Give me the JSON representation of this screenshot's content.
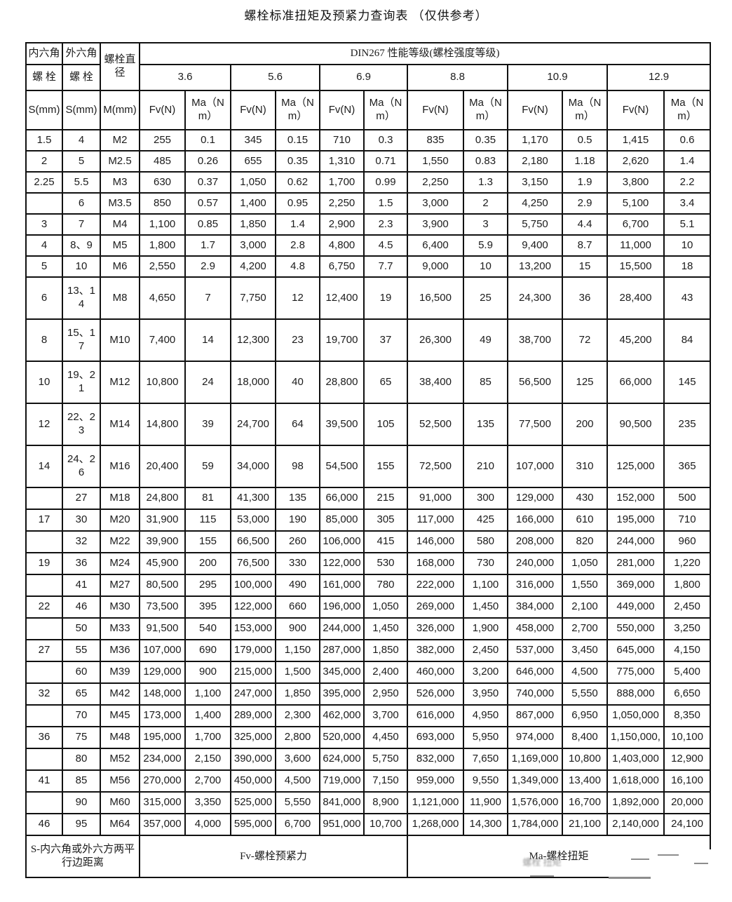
{
  "title": "螺栓标准扭矩及预紧力查询表 （仅供参考）",
  "table": {
    "corner": {
      "inner_hex": "内六角",
      "outer_hex": "外六角",
      "bolt_dia": "螺栓直径",
      "screw": "螺 栓",
      "s_unit": "S(mm)",
      "m_unit": "M(mm)"
    },
    "din_header": "DIN267 性能等级(螺栓强度等级)",
    "grades": [
      "3.6",
      "5.6",
      "6.9",
      "8.8",
      "10.9",
      "12.9"
    ],
    "fv_label": "Fv(N)",
    "ma_label": "Ma（N m）",
    "rows": [
      [
        "1.5",
        "4",
        "M2",
        "255",
        "0.1",
        "345",
        "0.15",
        "710",
        "0.3",
        "835",
        "0.35",
        "1,170",
        "0.5",
        "1,415",
        "0.6"
      ],
      [
        "2",
        "5",
        "M2.5",
        "485",
        "0.26",
        "655",
        "0.35",
        "1,310",
        "0.71",
        "1,550",
        "0.83",
        "2,180",
        "1.18",
        "2,620",
        "1.4"
      ],
      [
        "2.25",
        "5.5",
        "M3",
        "630",
        "0.37",
        "1,050",
        "0.62",
        "1,700",
        "0.99",
        "2,250",
        "1.3",
        "3,150",
        "1.9",
        "3,800",
        "2.2"
      ],
      [
        "",
        "6",
        "M3.5",
        "850",
        "0.57",
        "1,400",
        "0.95",
        "2,250",
        "1.5",
        "3,000",
        "2",
        "4,250",
        "2.9",
        "5,100",
        "3.4"
      ],
      [
        "3",
        "7",
        "M4",
        "1,100",
        "0.85",
        "1,850",
        "1.4",
        "2,900",
        "2.3",
        "3,900",
        "3",
        "5,750",
        "4.4",
        "6,700",
        "5.1"
      ],
      [
        "4",
        "8、9",
        "M5",
        "1,800",
        "1.7",
        "3,000",
        "2.8",
        "4,800",
        "4.5",
        "6,400",
        "5.9",
        "9,400",
        "8.7",
        "11,000",
        "10"
      ],
      [
        "5",
        "10",
        "M6",
        "2,550",
        "2.9",
        "4,200",
        "4.8",
        "6,750",
        "7.7",
        "9,000",
        "10",
        "13,200",
        "15",
        "15,500",
        "18"
      ],
      [
        "6",
        "13、14",
        "M8",
        "4,650",
        "7",
        "7,750",
        "12",
        "12,400",
        "19",
        "16,500",
        "25",
        "24,300",
        "36",
        "28,400",
        "43"
      ],
      [
        "8",
        "15、17",
        "M10",
        "7,400",
        "14",
        "12,300",
        "23",
        "19,700",
        "37",
        "26,300",
        "49",
        "38,700",
        "72",
        "45,200",
        "84"
      ],
      [
        "10",
        "19、21",
        "M12",
        "10,800",
        "24",
        "18,000",
        "40",
        "28,800",
        "65",
        "38,400",
        "85",
        "56,500",
        "125",
        "66,000",
        "145"
      ],
      [
        "12",
        "22、23",
        "M14",
        "14,800",
        "39",
        "24,700",
        "64",
        "39,500",
        "105",
        "52,500",
        "135",
        "77,500",
        "200",
        "90,500",
        "235"
      ],
      [
        "14",
        "24、26",
        "M16",
        "20,400",
        "59",
        "34,000",
        "98",
        "54,500",
        "155",
        "72,500",
        "210",
        "107,000",
        "310",
        "125,000",
        "365"
      ],
      [
        "",
        "27",
        "M18",
        "24,800",
        "81",
        "41,300",
        "135",
        "66,000",
        "215",
        "91,000",
        "300",
        "129,000",
        "430",
        "152,000",
        "500"
      ],
      [
        "17",
        "30",
        "M20",
        "31,900",
        "115",
        "53,000",
        "190",
        "85,000",
        "305",
        "117,000",
        "425",
        "166,000",
        "610",
        "195,000",
        "710"
      ],
      [
        "",
        "32",
        "M22",
        "39,900",
        "155",
        "66,500",
        "260",
        "106,000",
        "415",
        "146,000",
        "580",
        "208,000",
        "820",
        "244,000",
        "960"
      ],
      [
        "19",
        "36",
        "M24",
        "45,900",
        "200",
        "76,500",
        "330",
        "122,000",
        "530",
        "168,000",
        "730",
        "240,000",
        "1,050",
        "281,000",
        "1,220"
      ],
      [
        "",
        "41",
        "M27",
        "80,500",
        "295",
        "100,000",
        "490",
        "161,000",
        "780",
        "222,000",
        "1,100",
        "316,000",
        "1,550",
        "369,000",
        "1,800"
      ],
      [
        "22",
        "46",
        "M30",
        "73,500",
        "395",
        "122,000",
        "660",
        "196,000",
        "1,050",
        "269,000",
        "1,450",
        "384,000",
        "2,100",
        "449,000",
        "2,450"
      ],
      [
        "",
        "50",
        "M33",
        "91,500",
        "540",
        "153,000",
        "900",
        "244,000",
        "1,450",
        "326,000",
        "1,900",
        "458,000",
        "2,700",
        "550,000",
        "3,250"
      ],
      [
        "27",
        "55",
        "M36",
        "107,000",
        "690",
        "179,000",
        "1,150",
        "287,000",
        "1,850",
        "382,000",
        "2,450",
        "537,000",
        "3,450",
        "645,000",
        "4,150"
      ],
      [
        "",
        "60",
        "M39",
        "129,000",
        "900",
        "215,000",
        "1,500",
        "345,000",
        "2,400",
        "460,000",
        "3,200",
        "646,000",
        "4,500",
        "775,000",
        "5,400"
      ],
      [
        "32",
        "65",
        "M42",
        "148,000",
        "1,100",
        "247,000",
        "1,850",
        "395,000",
        "2,950",
        "526,000",
        "3,950",
        "740,000",
        "5,550",
        "888,000",
        "6,650"
      ],
      [
        "",
        "70",
        "M45",
        "173,000",
        "1,400",
        "289,000",
        "2,300",
        "462,000",
        "3,700",
        "616,000",
        "4,950",
        "867,000",
        "6,950",
        "1,050,000",
        "8,350"
      ],
      [
        "36",
        "75",
        "M48",
        "195,000",
        "1,700",
        "325,000",
        "2,800",
        "520,000",
        "4,450",
        "693,000",
        "5,950",
        "974,000",
        "8,400",
        "1,150,000,",
        "10,100"
      ],
      [
        "",
        "80",
        "M52",
        "234,000",
        "2,150",
        "390,000",
        "3,600",
        "624,000",
        "5,750",
        "832,000",
        "7,650",
        "1,169,000",
        "10,800",
        "1,403,000",
        "12,900"
      ],
      [
        "41",
        "85",
        "M56",
        "270,000",
        "2,700",
        "450,000",
        "4,500",
        "719,000",
        "7,150",
        "959,000",
        "9,550",
        "1,349,000",
        "13,400",
        "1,618,000",
        "16,100"
      ],
      [
        "",
        "90",
        "M60",
        "315,000",
        "3,350",
        "525,000",
        "5,550",
        "841,000",
        "8,900",
        "1,121,000",
        "11,900",
        "1,576,000",
        "16,700",
        "1,892,000",
        "20,000"
      ],
      [
        "46",
        "95",
        "M64",
        "357,000",
        "4,000",
        "595,000",
        "6,700",
        "951,000",
        "10,700",
        "1,268,000",
        "14,300",
        "1,784,000",
        "21,100",
        "2,140,000",
        "24,100"
      ]
    ]
  },
  "footer": {
    "s_note": "S-内六角或外六方两平行边距离",
    "fv_note": "Fv-螺栓预紧力",
    "ma_note": "Ma-螺栓扭矩",
    "ghost_text": "螺栓 扭矩"
  }
}
